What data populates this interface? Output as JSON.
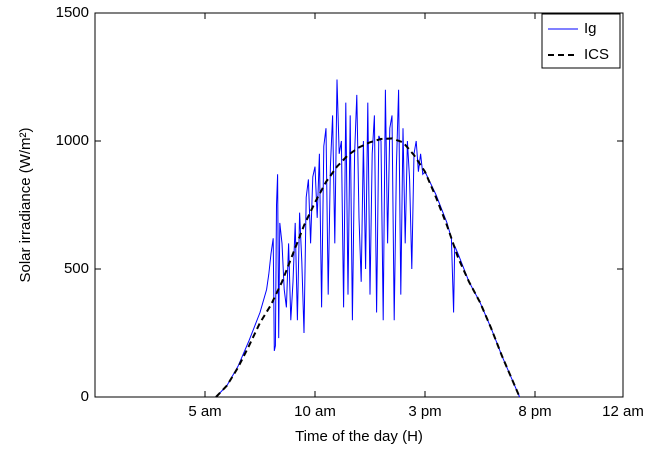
{
  "chart_data": {
    "type": "line",
    "x_label": "Time of the day (H)",
    "y_label": "Solar irradiance (W/m²)",
    "xlim": [
      0,
      24
    ],
    "xticks": [
      {
        "value": 5,
        "label": "5 am"
      },
      {
        "value": 10,
        "label": "10 am"
      },
      {
        "value": 15,
        "label": "3 pm"
      },
      {
        "value": 20,
        "label": "8 pm"
      },
      {
        "value": 24,
        "label": "12 am"
      }
    ],
    "ylim": [
      0,
      1500
    ],
    "yticks": [
      0,
      500,
      1000,
      1500
    ],
    "legend": "upper right",
    "series": [
      {
        "name": "Ig",
        "color": "#0000ff",
        "dash": "solid",
        "x": [
          5.5,
          6,
          6.5,
          7,
          7.5,
          7.8,
          7.9,
          8.0,
          8.1,
          8.15,
          8.2,
          8.25,
          8.3,
          8.35,
          8.4,
          8.5,
          8.6,
          8.7,
          8.8,
          8.9,
          9.0,
          9.1,
          9.2,
          9.3,
          9.4,
          9.5,
          9.6,
          9.7,
          9.8,
          9.9,
          10.0,
          10.1,
          10.2,
          10.3,
          10.4,
          10.5,
          10.6,
          10.7,
          10.8,
          10.9,
          11.0,
          11.1,
          11.2,
          11.3,
          11.4,
          11.5,
          11.6,
          11.7,
          11.8,
          11.9,
          12.0,
          12.1,
          12.2,
          12.3,
          12.4,
          12.5,
          12.6,
          12.7,
          12.8,
          12.9,
          13.0,
          13.1,
          13.2,
          13.3,
          13.4,
          13.5,
          13.6,
          13.7,
          13.8,
          13.9,
          14.0,
          14.1,
          14.2,
          14.3,
          14.4,
          14.5,
          14.6,
          14.7,
          14.8,
          14.9,
          15.0,
          15.5,
          16,
          16.2,
          16.3,
          16.35,
          16.5,
          17,
          17.5,
          18,
          18.5,
          19,
          19.3
        ],
        "values": [
          0,
          45,
          120,
          220,
          330,
          420,
          480,
          560,
          620,
          180,
          200,
          750,
          870,
          230,
          680,
          600,
          420,
          350,
          600,
          300,
          450,
          680,
          300,
          720,
          530,
          250,
          780,
          850,
          600,
          860,
          900,
          700,
          950,
          350,
          980,
          1050,
          400,
          900,
          1100,
          600,
          1240,
          950,
          1000,
          350,
          1150,
          400,
          1100,
          300,
          950,
          1180,
          700,
          450,
          1000,
          500,
          1150,
          400,
          950,
          1100,
          330,
          1020,
          1000,
          300,
          1200,
          600,
          1050,
          1100,
          300,
          900,
          1200,
          400,
          1050,
          600,
          1000,
          850,
          500,
          950,
          1000,
          880,
          950,
          870,
          880,
          790,
          680,
          620,
          330,
          590,
          560,
          450,
          370,
          270,
          160,
          60,
          0
        ]
      },
      {
        "name": "ICS",
        "color": "#000000",
        "dash": "dashed",
        "x": [
          5.5,
          6,
          6.5,
          7,
          7.5,
          8,
          8.5,
          9,
          9.5,
          10,
          10.5,
          11,
          11.5,
          12,
          12.5,
          13,
          13.5,
          14,
          14.5,
          15,
          15.5,
          16,
          16.5,
          17,
          17.5,
          18,
          18.5,
          19,
          19.3
        ],
        "values": [
          0,
          45,
          115,
          200,
          290,
          360,
          450,
          560,
          670,
          760,
          840,
          900,
          945,
          975,
          995,
          1008,
          1010,
          995,
          945,
          880,
          780,
          670,
          545,
          450,
          370,
          270,
          160,
          60,
          0
        ]
      }
    ]
  }
}
